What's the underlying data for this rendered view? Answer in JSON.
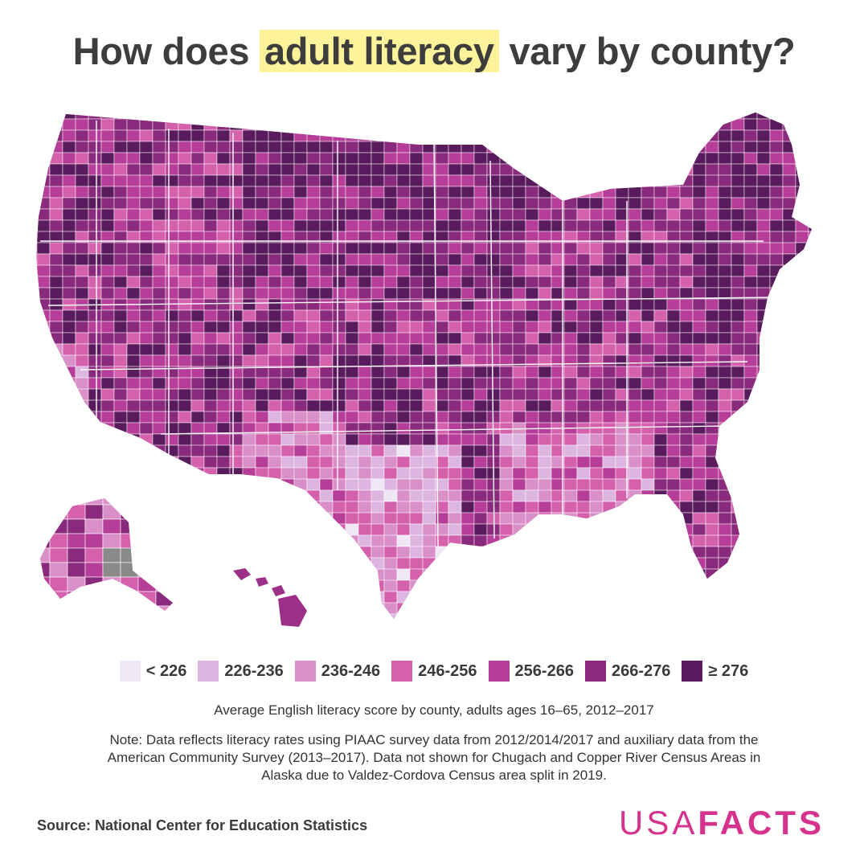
{
  "title": {
    "prefix": "How does ",
    "highlight": "adult literacy",
    "suffix": " vary by county?"
  },
  "legend": [
    {
      "label": "< 226",
      "color": "#efe6f6"
    },
    {
      "label": "226-236",
      "color": "#dcb6e0"
    },
    {
      "label": "236-246",
      "color": "#d98fc8"
    },
    {
      "label": "246-256",
      "color": "#d561ad"
    },
    {
      "label": "256-266",
      "color": "#b63d98"
    },
    {
      "label": "266-276",
      "color": "#8a2a7c"
    },
    {
      "label": "≥ 276",
      "color": "#5a1a5e"
    }
  ],
  "no_data_color": "#8a8a8a",
  "subtitle": "Average English literacy score by county, adults ages 16–65, 2012–2017",
  "note": "Note: Data reflects literacy rates using PIAAC survey data from 2012/2014/2017 and auxiliary data from the American Community Survey (2013–2017). Data not shown for Chugach and Copper River Census Areas in Alaska due to Valdez-Cordova Census area split in 2019.",
  "source": "Source: National Center for Education Statistics",
  "logo": {
    "usa": "USA",
    "facts": "FACTS"
  }
}
